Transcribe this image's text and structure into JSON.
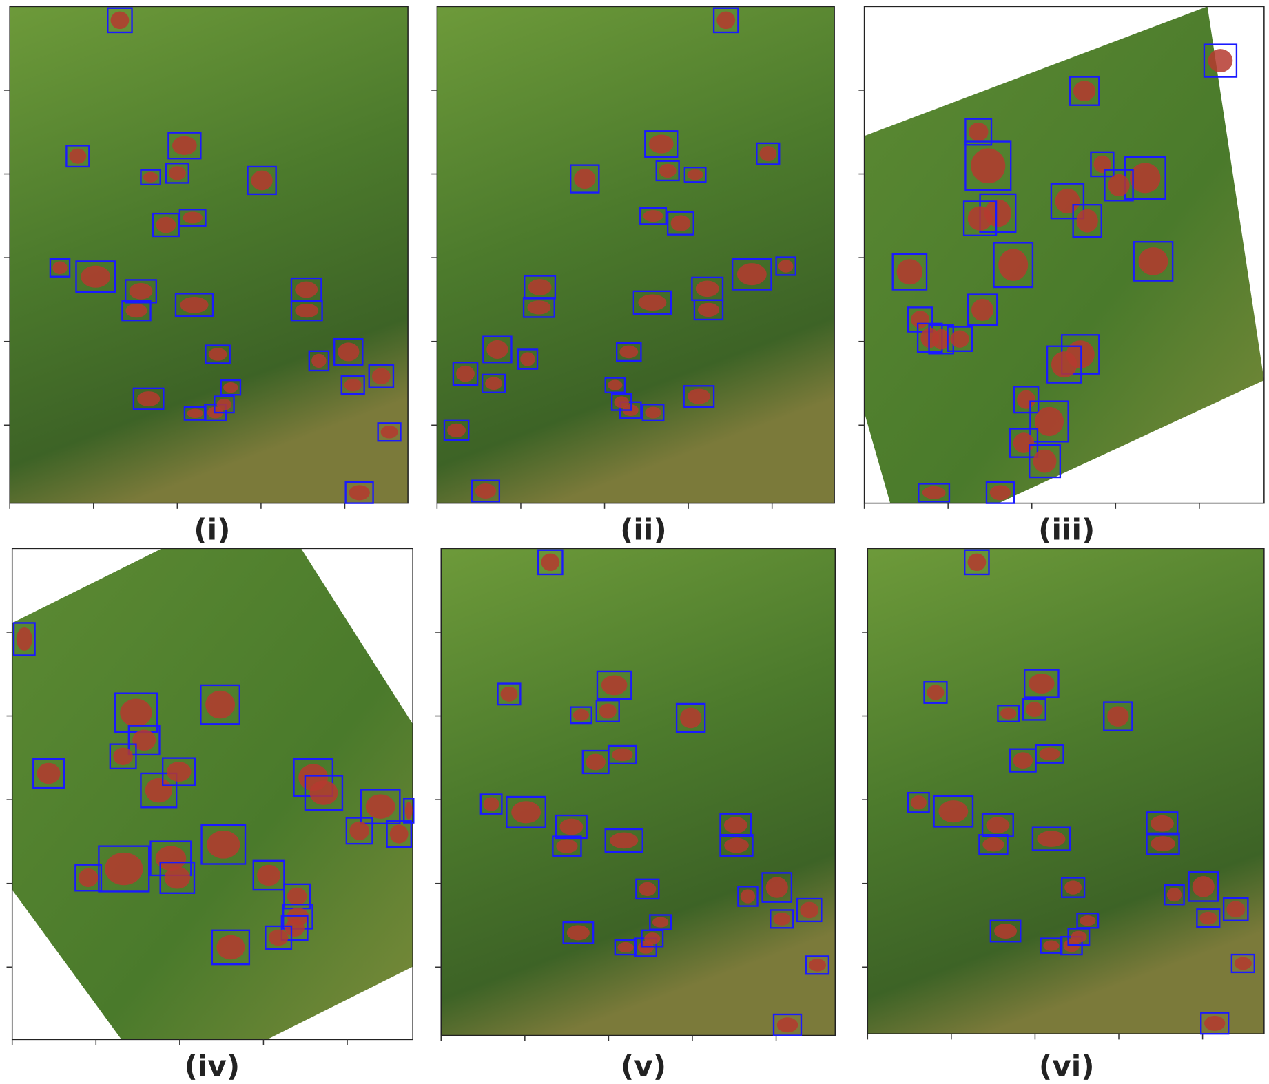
{
  "panels": [
    {
      "label": "(i)"
    },
    {
      "label": "(ii)"
    },
    {
      "label": "(iii)"
    },
    {
      "label": "(iv)"
    },
    {
      "label": "(v)"
    },
    {
      "label": "(vi)"
    }
  ]
}
